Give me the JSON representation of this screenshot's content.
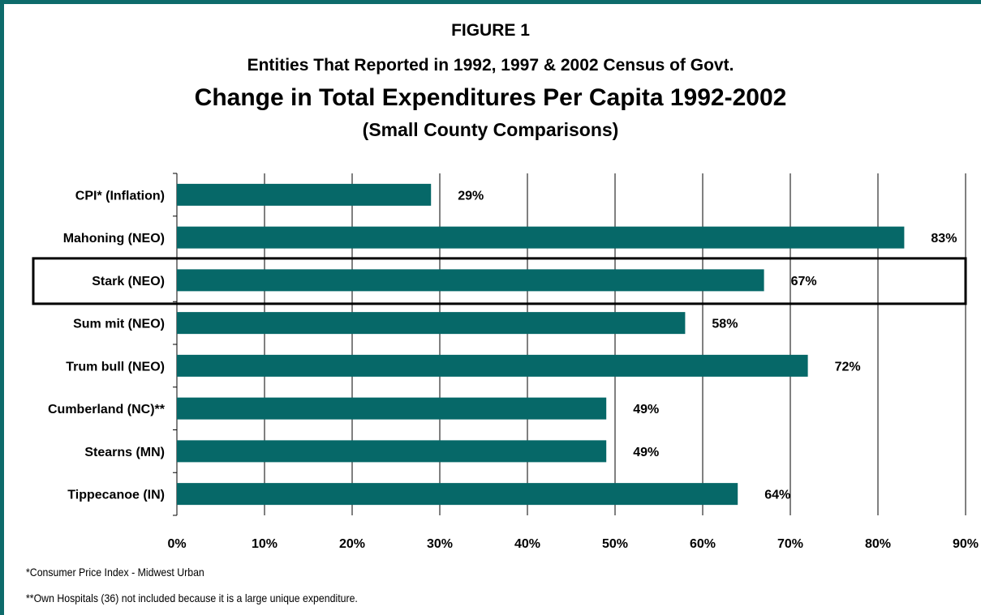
{
  "titles": {
    "figure": "FIGURE 1",
    "subtitle": "Entities That Reported in 1992, 1997 & 2002 Census of Govt.",
    "main": "Change in Total Expenditures Per Capita 1992-2002",
    "comparison": "(Small County Comparisons)"
  },
  "footnotes": {
    "cpi": "*Consumer Price Index - Midwest Urban",
    "hospitals": "**Own Hospitals (36) not included because it is a large unique expenditure."
  },
  "colors": {
    "bar": "#066868",
    "frame": "#0e6b6b",
    "highlight_box": "#000000",
    "grid": "#000000"
  },
  "chart_data": {
    "type": "bar",
    "orientation": "horizontal",
    "categories": [
      "CPI* (Inflation)",
      "Mahoning (NEO)",
      "Stark (NEO)",
      "Sum mit (NEO)",
      "Trum bull (NEO)",
      "Cumberland (NC)**",
      "Stearns (MN)",
      "Tippecanoe (IN)"
    ],
    "values": [
      29,
      83,
      67,
      58,
      72,
      49,
      49,
      64
    ],
    "data_labels": [
      "29%",
      "83%",
      "67%",
      "58%",
      "72%",
      "49%",
      "49%",
      "64%"
    ],
    "xlim": [
      0,
      90
    ],
    "x_ticks": [
      0,
      10,
      20,
      30,
      40,
      50,
      60,
      70,
      80,
      90
    ],
    "x_tick_labels": [
      "0%",
      "10%",
      "20%",
      "30%",
      "40%",
      "50%",
      "60%",
      "70%",
      "80%",
      "90%"
    ],
    "highlighted_category": "Stark (NEO)",
    "grid": true,
    "legend": "none"
  }
}
